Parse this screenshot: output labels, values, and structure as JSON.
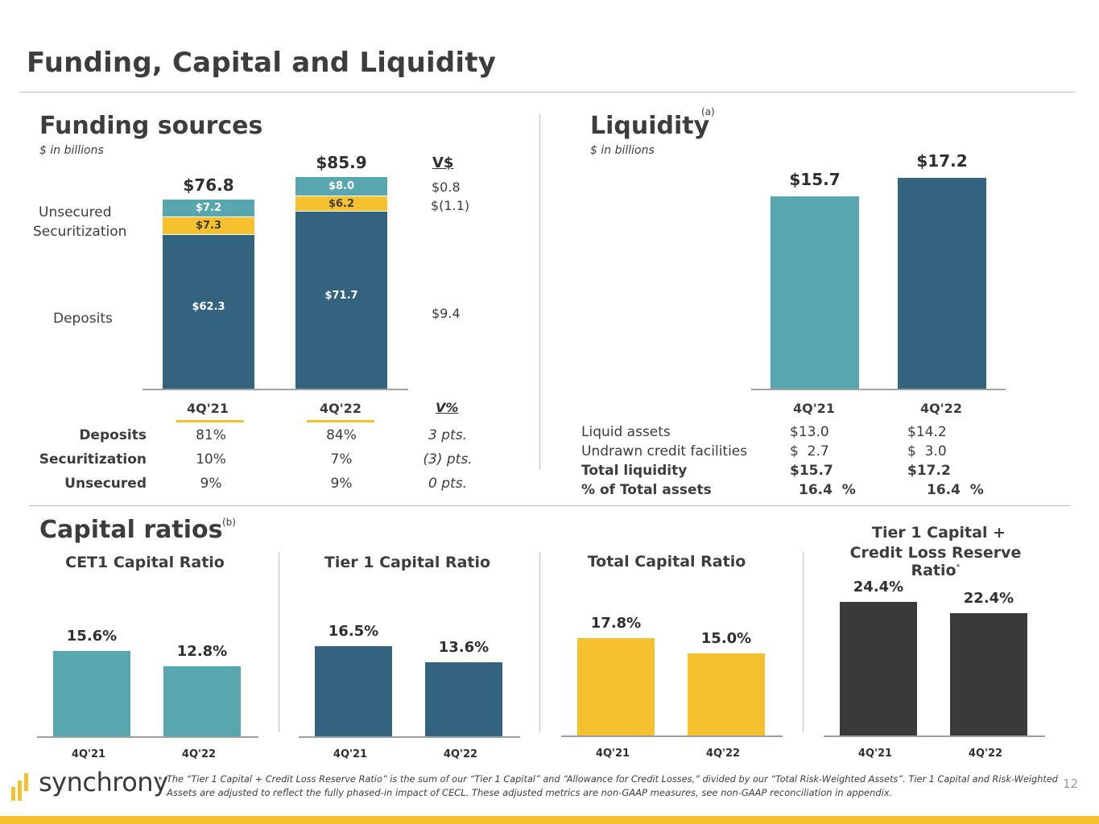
{
  "page": {
    "title": "Funding, Capital and Liquidity",
    "page_number": "12",
    "footnote_marker": "*",
    "footnote_line1": "The “Tier 1 Capital + Credit Loss Reserve Ratio” is the sum of our “Tier 1 Capital” and “Allowance for Credit Losses,” divided by our “Total Risk-Weighted Assets”. Tier 1 Capital and Risk-Weighted",
    "footnote_line2": "Assets are adjusted to reflect the fully phased-in impact of CECL. These adjusted metrics are non-GAAP measures, see non-GAAP reconciliation in appendix.",
    "logo_text": "synchrony",
    "colors": {
      "teal": "#58a7ae",
      "navy": "#34637f",
      "yellow": "#f6c12e",
      "charcoal": "#3a3a3a"
    }
  },
  "funding": {
    "title": "Funding sources",
    "unit": "$ in billions",
    "row_labels": [
      "Unsecured",
      "Securitization",
      "Deposits"
    ],
    "change_header": "V$",
    "changes": [
      "$0.8",
      "$(1.1)",
      "$9.4"
    ],
    "pct_header": "V%",
    "mix_rows": [
      {
        "label": "Deposits",
        "v1": "81%",
        "v2": "84%",
        "chg": "3 pts."
      },
      {
        "label": "Securitization",
        "v1": "10%",
        "v2": "7%",
        "chg": "(3) pts."
      },
      {
        "label": "Unsecured",
        "v1": "9%",
        "v2": "9%",
        "chg": "0 pts."
      }
    ]
  },
  "liquidity": {
    "title": "Liquidity",
    "sup": "(a)",
    "unit": "$ in billions",
    "rows": [
      {
        "label": "Liquid assets",
        "v1": "$13.0",
        "v2": "$14.2",
        "bold": false
      },
      {
        "label": "Undrawn credit facilities",
        "v1": "$  2.7",
        "v2": "$  3.0",
        "bold": false
      },
      {
        "label": "Total liquidity",
        "v1": "$15.7",
        "v2": "$17.2",
        "bold": true
      },
      {
        "label": "% of Total assets",
        "v1": "16.4  %",
        "v2": "16.4  %",
        "bold": true
      }
    ]
  },
  "capital": {
    "title": "Capital ratios",
    "sup": "(b)"
  },
  "chart_data": [
    {
      "type": "bar",
      "stacked": true,
      "categories": [
        "4Q'21",
        "4Q'22"
      ],
      "series": [
        {
          "name": "Deposits",
          "values": [
            62.3,
            71.7
          ],
          "labels": [
            "$62.3",
            "$71.7"
          ]
        },
        {
          "name": "Securitization",
          "values": [
            7.3,
            6.2
          ],
          "labels": [
            "$7.3",
            "$6.2"
          ]
        },
        {
          "name": "Unsecured",
          "values": [
            7.2,
            8.0
          ],
          "labels": [
            "$7.2",
            "$8.0"
          ]
        }
      ],
      "totals": [
        76.8,
        85.9
      ],
      "total_labels": [
        "$76.8",
        "$85.9"
      ],
      "ylim": [
        0,
        85.9
      ]
    },
    {
      "type": "bar",
      "categories": [
        "4Q'21",
        "4Q'22"
      ],
      "values": [
        15.7,
        17.2
      ],
      "value_labels": [
        "$15.7",
        "$17.2"
      ],
      "ylim": [
        0,
        17.2
      ]
    },
    {
      "type": "bar",
      "title": "CET1 Capital Ratio",
      "categories": [
        "4Q'21",
        "4Q'22"
      ],
      "values": [
        15.6,
        12.8
      ],
      "value_labels": [
        "15.6%",
        "12.8%"
      ]
    },
    {
      "type": "bar",
      "title": "Tier 1 Capital Ratio",
      "categories": [
        "4Q'21",
        "4Q'22"
      ],
      "values": [
        16.5,
        13.6
      ],
      "value_labels": [
        "16.5%",
        "13.6%"
      ]
    },
    {
      "type": "bar",
      "title": "Total Capital Ratio",
      "categories": [
        "4Q'21",
        "4Q'22"
      ],
      "values": [
        17.8,
        15.0
      ],
      "value_labels": [
        "17.8%",
        "15.0%"
      ]
    },
    {
      "type": "bar",
      "title_line1": "Tier 1 Capital +",
      "title_line2": "Credit Loss Reserve Ratio",
      "title_marker": "*",
      "categories": [
        "4Q'21",
        "4Q'22"
      ],
      "values": [
        24.4,
        22.4
      ],
      "value_labels": [
        "24.4%",
        "22.4%"
      ]
    }
  ]
}
